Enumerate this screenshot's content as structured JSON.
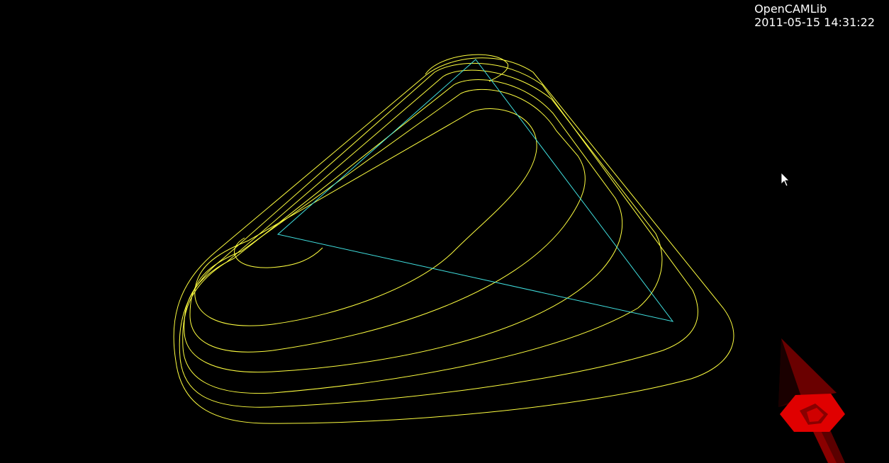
{
  "app": {
    "title": "OpenCAMLib",
    "timestamp": "2011-05-15 14:31:22"
  },
  "colors": {
    "background": "#000000",
    "offset_contour": "#ffff40",
    "triangle_edge": "#40e0e0",
    "cutter": "#e00000",
    "cutter_dark": "#8a0000",
    "text": "#ffffff"
  },
  "scene": {
    "offset_contour_count": 6,
    "icons": [
      "mouse-cursor-icon",
      "cutter-tool-icon"
    ]
  }
}
